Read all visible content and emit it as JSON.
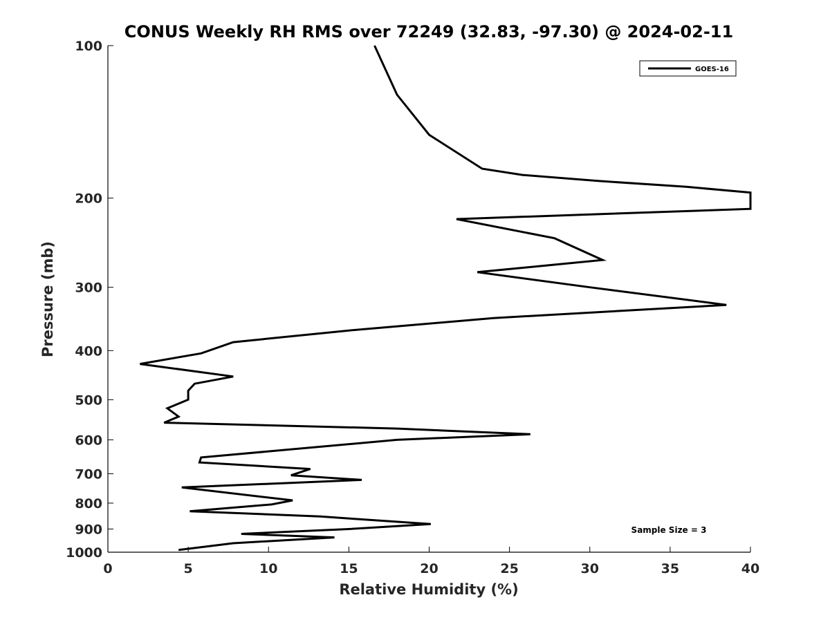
{
  "chart_data": {
    "type": "line",
    "title": "CONUS Weekly RH RMS over 72249 (32.83, -97.30) @ 2024-02-11",
    "xlabel": "Relative Humidity (%)",
    "ylabel": "Pressure (mb)",
    "xlim": [
      0,
      40
    ],
    "ylim": [
      1000,
      100
    ],
    "yscale": "log",
    "x_ticks": [
      0,
      5,
      10,
      15,
      20,
      25,
      30,
      35,
      40
    ],
    "y_ticks": [
      100,
      200,
      300,
      400,
      500,
      600,
      700,
      800,
      900,
      1000
    ],
    "grid": false,
    "legend": {
      "position": "top-right",
      "entries": [
        "GOES-16"
      ]
    },
    "annotations": [
      {
        "text": "Sample Size = 3",
        "position": "bottom-right"
      }
    ],
    "series": [
      {
        "name": "GOES-16",
        "color": "#000000",
        "points": [
          [
            16.6,
            100
          ],
          [
            18.0,
            125
          ],
          [
            20.0,
            150
          ],
          [
            23.3,
            175
          ],
          [
            25.8,
            180
          ],
          [
            30.5,
            185
          ],
          [
            36.0,
            190
          ],
          [
            40.0,
            195
          ],
          [
            40.0,
            210
          ],
          [
            21.7,
            220
          ],
          [
            27.8,
            240
          ],
          [
            30.8,
            265
          ],
          [
            23.0,
            280
          ],
          [
            30.0,
            300
          ],
          [
            38.5,
            325
          ],
          [
            24.0,
            345
          ],
          [
            15.0,
            365
          ],
          [
            7.8,
            385
          ],
          [
            5.8,
            405
          ],
          [
            2.0,
            425
          ],
          [
            7.8,
            450
          ],
          [
            5.4,
            465
          ],
          [
            5.0,
            480
          ],
          [
            5.0,
            500
          ],
          [
            3.7,
            520
          ],
          [
            4.4,
            540
          ],
          [
            3.5,
            555
          ],
          [
            18.0,
            570
          ],
          [
            26.3,
            585
          ],
          [
            18.0,
            600
          ],
          [
            5.8,
            650
          ],
          [
            5.7,
            665
          ],
          [
            12.6,
            685
          ],
          [
            11.4,
            705
          ],
          [
            15.8,
            720
          ],
          [
            4.6,
            745
          ],
          [
            11.5,
            790
          ],
          [
            10.2,
            805
          ],
          [
            5.1,
            830
          ],
          [
            13.2,
            850
          ],
          [
            15.5,
            860
          ],
          [
            20.1,
            880
          ],
          [
            15.0,
            900
          ],
          [
            8.3,
            920
          ],
          [
            14.1,
            935
          ],
          [
            7.8,
            960
          ],
          [
            4.4,
            990
          ]
        ]
      }
    ]
  }
}
